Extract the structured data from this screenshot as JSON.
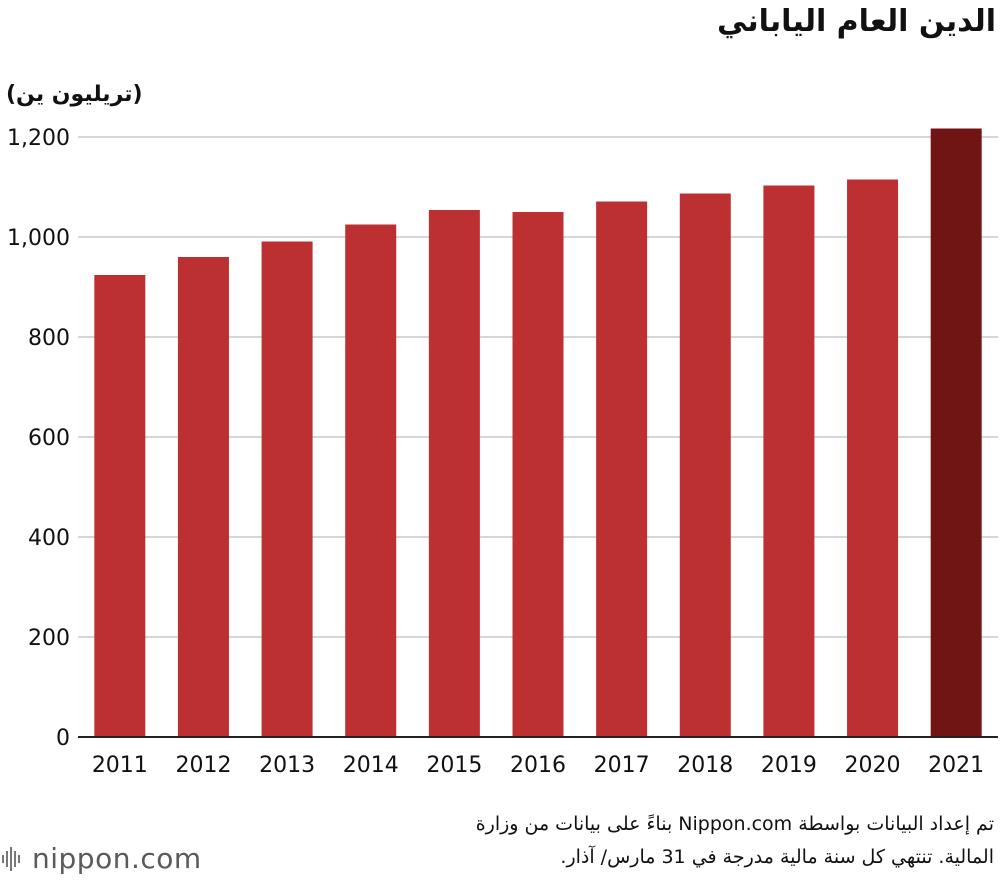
{
  "header": {
    "title": "الدين العام الياباني",
    "unit": "(تريليون ين)"
  },
  "footer": {
    "logo_text": "nippon.com",
    "source_line1": "تم إعداد البيانات بواسطة Nippon.com بناءً على بيانات من وزارة",
    "source_line2": "المالية. تنتهي كل سنة مالية مدرجة في 31 مارس/ آذار."
  },
  "colors": {
    "bar": "#bd3031",
    "bar_highlight": "#701414",
    "grid": "#c8c8c8",
    "axis": "#222222"
  },
  "chart_data": {
    "type": "bar",
    "categories": [
      "2011",
      "2012",
      "2013",
      "2014",
      "2015",
      "2016",
      "2017",
      "2018",
      "2019",
      "2020",
      "2021"
    ],
    "values": [
      924,
      960,
      991,
      1025,
      1054,
      1050,
      1071,
      1087,
      1103,
      1115,
      1217
    ],
    "highlight_index": 10,
    "title": "الدين العام الياباني",
    "ylabel": "(تريليون ين)",
    "xlabel": "",
    "ylim": [
      0,
      1200
    ],
    "yticks": [
      0,
      200,
      400,
      600,
      800,
      1000,
      1200
    ],
    "ytick_labels": [
      "0",
      "200",
      "400",
      "600",
      "800",
      "1,000",
      "1,200"
    ],
    "grid": true,
    "legend": "none"
  }
}
